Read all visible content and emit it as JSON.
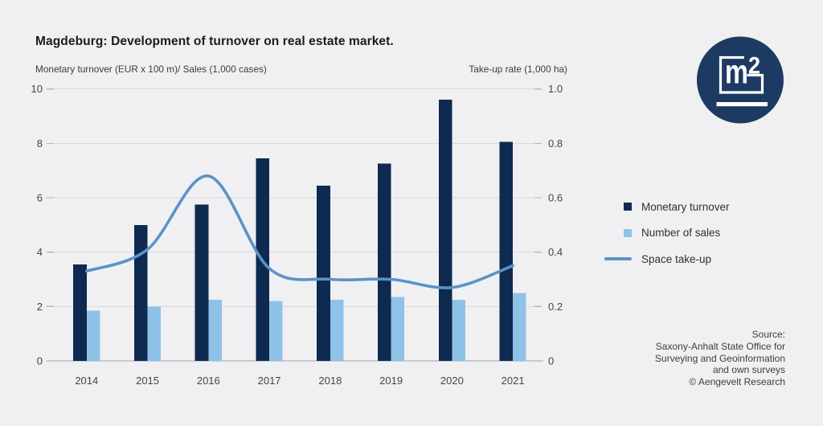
{
  "title": "Magdeburg: Development of turnover on real estate market.",
  "chart_data": {
    "type": "bar+line",
    "categories": [
      "2014",
      "2015",
      "2016",
      "2017",
      "2018",
      "2019",
      "2020",
      "2021"
    ],
    "series": [
      {
        "name": "Monetary turnover",
        "type": "bar",
        "axis": "left",
        "color": "#0e2a50",
        "values": [
          3.55,
          5.0,
          5.75,
          7.45,
          6.45,
          7.25,
          9.6,
          8.05
        ]
      },
      {
        "name": "Number of sales",
        "type": "bar",
        "axis": "left",
        "color": "#8fc2e9",
        "values": [
          1.85,
          2.0,
          2.25,
          2.2,
          2.25,
          2.35,
          2.25,
          2.5
        ]
      },
      {
        "name": "Space take-up",
        "type": "line",
        "axis": "right",
        "color": "#5b93c8",
        "values": [
          0.33,
          0.41,
          0.68,
          0.34,
          0.3,
          0.3,
          0.27,
          0.35
        ]
      }
    ],
    "left_axis": {
      "caption": "Monetary turnover (EUR x 100 m)/ Sales (1,000 cases)",
      "range": [
        0,
        10
      ],
      "tick_values": [
        0,
        2,
        4,
        6,
        8,
        10
      ],
      "tick_labels": [
        "0",
        "2",
        "4",
        "6",
        "8",
        "10"
      ]
    },
    "right_axis": {
      "caption": "Take-up rate (1,000 ha)",
      "range": [
        0,
        1.0
      ],
      "tick_labels": [
        "0",
        "0.2",
        "0.4",
        "0.6",
        "0.8",
        "1.0"
      ]
    },
    "grid": true,
    "legend_position": "right"
  },
  "logo": {
    "m": "m",
    "sup": "2"
  },
  "source": {
    "lines": [
      "Source:",
      "Saxony-Anhalt State Office for",
      "Surveying and Geoinformation",
      "and own surveys",
      "© Aengevelt Research"
    ]
  },
  "colors": {
    "background": "#f0f0f2",
    "grid": "#d9d9db",
    "axis": "#a4a4a7",
    "tick_text": "#454545",
    "logo_navy": "#1d3a63"
  }
}
